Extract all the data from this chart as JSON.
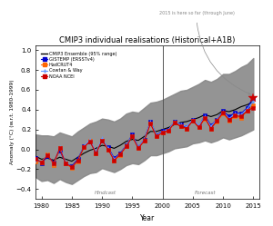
{
  "title": "CMIP3 individual realisations (Historical+A1B)",
  "xlabel": "Year",
  "ylabel": "Anomaly (°C) (w.r.t. 1980-1999)",
  "annotation_text": "2015 is here so far (through June)",
  "hindcast_label": "Hindcast",
  "forecast_label": "Forecast",
  "xlim": [
    1979,
    2016
  ],
  "ylim": [
    -0.5,
    1.05
  ],
  "yticks": [
    -0.4,
    -0.2,
    0.0,
    0.2,
    0.4,
    0.6,
    0.8,
    1.0
  ],
  "xticks": [
    1980,
    1985,
    1990,
    1995,
    2000,
    2005,
    2010,
    2015
  ],
  "divider_year": 2000,
  "ensemble_color": "#888888",
  "years": [
    1979,
    1980,
    1981,
    1982,
    1983,
    1984,
    1985,
    1986,
    1987,
    1988,
    1989,
    1990,
    1991,
    1992,
    1993,
    1994,
    1995,
    1996,
    1997,
    1998,
    1999,
    2000,
    2001,
    2002,
    2003,
    2004,
    2005,
    2006,
    2007,
    2008,
    2009,
    2010,
    2011,
    2012,
    2013,
    2014,
    2015
  ],
  "ensemble_mean": [
    -0.07,
    -0.1,
    -0.09,
    -0.11,
    -0.08,
    -0.1,
    -0.12,
    -0.08,
    -0.04,
    -0.01,
    0.01,
    0.04,
    0.03,
    0.01,
    0.04,
    0.08,
    0.1,
    0.09,
    0.13,
    0.18,
    0.18,
    0.2,
    0.22,
    0.25,
    0.27,
    0.28,
    0.3,
    0.32,
    0.35,
    0.33,
    0.35,
    0.39,
    0.38,
    0.4,
    0.43,
    0.45,
    0.48
  ],
  "ensemble_upper": [
    0.15,
    0.14,
    0.14,
    0.13,
    0.17,
    0.15,
    0.13,
    0.18,
    0.22,
    0.26,
    0.28,
    0.31,
    0.3,
    0.28,
    0.31,
    0.36,
    0.38,
    0.37,
    0.42,
    0.47,
    0.48,
    0.5,
    0.53,
    0.56,
    0.59,
    0.6,
    0.63,
    0.66,
    0.7,
    0.68,
    0.71,
    0.76,
    0.76,
    0.79,
    0.83,
    0.86,
    0.92
  ],
  "ensemble_lower": [
    -0.28,
    -0.32,
    -0.31,
    -0.34,
    -0.3,
    -0.33,
    -0.35,
    -0.31,
    -0.27,
    -0.24,
    -0.23,
    -0.19,
    -0.21,
    -0.23,
    -0.2,
    -0.16,
    -0.14,
    -0.15,
    -0.11,
    -0.06,
    -0.06,
    -0.04,
    -0.02,
    0.01,
    0.02,
    0.03,
    0.06,
    0.07,
    0.09,
    0.07,
    0.09,
    0.12,
    0.1,
    0.12,
    0.14,
    0.17,
    0.2
  ],
  "gistemp": [
    -0.09,
    -0.14,
    -0.07,
    -0.13,
    -0.01,
    -0.14,
    -0.17,
    -0.1,
    0.03,
    0.08,
    -0.03,
    0.09,
    0.02,
    -0.09,
    -0.04,
    0.04,
    0.15,
    0.02,
    0.1,
    0.28,
    0.14,
    0.19,
    0.2,
    0.28,
    0.25,
    0.22,
    0.3,
    0.23,
    0.34,
    0.24,
    0.3,
    0.39,
    0.33,
    0.37,
    0.36,
    0.42,
    0.52
  ],
  "hadcrut4": [
    -0.12,
    -0.13,
    -0.05,
    -0.16,
    0.01,
    -0.14,
    -0.19,
    -0.12,
    0.02,
    0.09,
    -0.04,
    0.1,
    0.0,
    -0.11,
    -0.06,
    0.03,
    0.13,
    0.01,
    0.09,
    0.26,
    0.13,
    0.17,
    0.19,
    0.27,
    0.23,
    0.21,
    0.29,
    0.22,
    0.31,
    0.21,
    0.28,
    0.36,
    0.29,
    0.33,
    0.32,
    0.39,
    0.44
  ],
  "cowtan_way": [
    -0.11,
    -0.13,
    -0.05,
    -0.15,
    0.02,
    -0.13,
    -0.18,
    -0.11,
    0.03,
    0.1,
    -0.03,
    0.11,
    0.01,
    -0.1,
    -0.05,
    0.04,
    0.14,
    0.02,
    0.1,
    0.28,
    0.14,
    0.18,
    0.2,
    0.28,
    0.25,
    0.23,
    0.3,
    0.24,
    0.33,
    0.23,
    0.3,
    0.38,
    0.31,
    0.36,
    0.35,
    0.41,
    0.48
  ],
  "noaa": [
    -0.1,
    -0.13,
    -0.06,
    -0.14,
    0.01,
    -0.14,
    -0.18,
    -0.11,
    0.02,
    0.08,
    -0.04,
    0.09,
    0.0,
    -0.11,
    -0.05,
    0.03,
    0.13,
    0.01,
    0.09,
    0.26,
    0.13,
    0.17,
    0.19,
    0.27,
    0.23,
    0.21,
    0.29,
    0.22,
    0.32,
    0.21,
    0.29,
    0.37,
    0.3,
    0.34,
    0.33,
    0.39,
    0.42
  ],
  "star_year": 2015,
  "star_value": 0.52,
  "star_color": "#cc0000",
  "gistemp_color": "#0000cc",
  "hadcrut4_color": "#ff6600",
  "cowtan_color": "#6699ff",
  "noaa_color": "#cc0000",
  "mean_color": "#000000",
  "bg_color": "#ffffff",
  "legend_labels": [
    "CMIP3 Ensemble (95% range)",
    "GISTEMP (ERSSTv4)",
    "HadCRUT4",
    "Cowtan & Way",
    "NOAA NCEI"
  ]
}
